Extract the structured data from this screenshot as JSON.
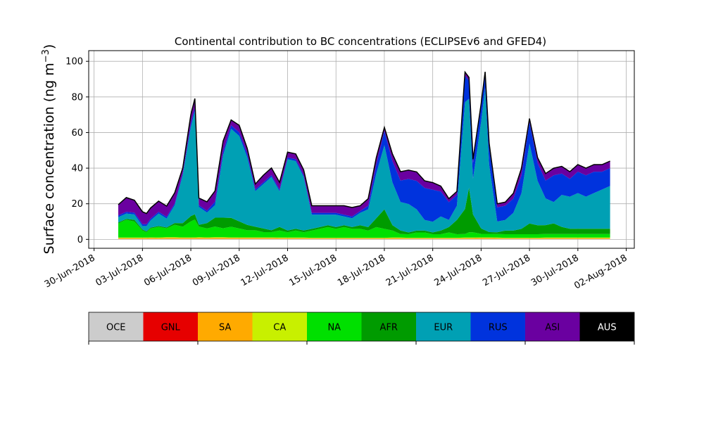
{
  "chart_data": {
    "type": "area",
    "title": "Continental contribution to BC concentrations (ECLIPSEv6 and GFED4)",
    "ylabel": "Surface concentration (ng m",
    "ylabel_exp": "−3",
    "ylabel_close": ")",
    "xlabel": "",
    "ylim": [
      -5,
      106
    ],
    "yticks": [
      0,
      20,
      40,
      60,
      80,
      100
    ],
    "xlim": [
      "2018-06-29T16:00",
      "2018-08-02T12:00"
    ],
    "xticks": [
      "2018-06-30",
      "2018-07-03",
      "2018-07-06",
      "2018-07-09",
      "2018-07-12",
      "2018-07-15",
      "2018-07-18",
      "2018-07-21",
      "2018-07-24",
      "2018-07-27",
      "2018-07-30",
      "2018-08-02"
    ],
    "xtick_labels": [
      "30-Jun-2018",
      "03-Jul-2018",
      "06-Jul-2018",
      "09-Jul-2018",
      "12-Jul-2018",
      "15-Jul-2018",
      "18-Jul-2018",
      "21-Jul-2018",
      "24-Jul-2018",
      "27-Jul-2018",
      "30-Jul-2018",
      "02-Aug-2018"
    ],
    "grid": true,
    "legend_position": "bottom colorbar",
    "x": [
      "2018-07-01T12:00",
      "2018-07-02T00:00",
      "2018-07-02T12:00",
      "2018-07-03T00:00",
      "2018-07-03T06:00",
      "2018-07-03T12:00",
      "2018-07-04T00:00",
      "2018-07-04T12:00",
      "2018-07-05T00:00",
      "2018-07-05T12:00",
      "2018-07-06T00:00",
      "2018-07-06T06:00",
      "2018-07-06T12:00",
      "2018-07-07T00:00",
      "2018-07-07T12:00",
      "2018-07-08T00:00",
      "2018-07-08T12:00",
      "2018-07-09T00:00",
      "2018-07-09T12:00",
      "2018-07-10T00:00",
      "2018-07-10T12:00",
      "2018-07-11T00:00",
      "2018-07-11T12:00",
      "2018-07-12T00:00",
      "2018-07-12T12:00",
      "2018-07-13T00:00",
      "2018-07-13T12:00",
      "2018-07-14T00:00",
      "2018-07-14T12:00",
      "2018-07-15T00:00",
      "2018-07-15T12:00",
      "2018-07-16T00:00",
      "2018-07-16T12:00",
      "2018-07-17T00:00",
      "2018-07-17T12:00",
      "2018-07-18T00:00",
      "2018-07-18T12:00",
      "2018-07-19T00:00",
      "2018-07-19T12:00",
      "2018-07-20T00:00",
      "2018-07-20T12:00",
      "2018-07-21T00:00",
      "2018-07-21T12:00",
      "2018-07-22T00:00",
      "2018-07-22T12:00",
      "2018-07-23T00:00",
      "2018-07-23T06:00",
      "2018-07-23T12:00",
      "2018-07-24T00:00",
      "2018-07-24T06:00",
      "2018-07-24T12:00",
      "2018-07-25T00:00",
      "2018-07-25T12:00",
      "2018-07-26T00:00",
      "2018-07-26T12:00",
      "2018-07-27T00:00",
      "2018-07-27T12:00",
      "2018-07-28T00:00",
      "2018-07-28T12:00",
      "2018-07-29T00:00",
      "2018-07-29T12:00",
      "2018-07-30T00:00",
      "2018-07-30T12:00",
      "2018-07-31T00:00",
      "2018-07-31T12:00",
      "2018-08-01T00:00"
    ],
    "series": [
      {
        "name": "OCE",
        "color": "#cccccc",
        "values": [
          0.2,
          0.2,
          0.2,
          0.2,
          0.2,
          0.2,
          0.2,
          0.2,
          0.2,
          0.2,
          0.2,
          0.2,
          0.2,
          0.2,
          0.2,
          0.2,
          0.2,
          0.2,
          0.2,
          0.2,
          0.2,
          0.2,
          0.2,
          0.2,
          0.2,
          0.2,
          0.2,
          0.2,
          0.2,
          0.2,
          0.2,
          0.2,
          0.2,
          0.2,
          0.2,
          0.2,
          0.2,
          0.2,
          0.2,
          0.2,
          0.2,
          0.2,
          0.2,
          0.2,
          0.2,
          0.2,
          0.2,
          0.2,
          0.2,
          0.2,
          0.2,
          0.2,
          0.2,
          0.2,
          0.2,
          0.2,
          0.2,
          0.2,
          0.2,
          0.2,
          0.2,
          0.2,
          0.2,
          0.2,
          0.2,
          0.2
        ]
      },
      {
        "name": "GNL",
        "color": "#e60000",
        "values": [
          0.1,
          0.1,
          0.1,
          0.1,
          0.1,
          0.1,
          0.1,
          0.1,
          0.1,
          0.1,
          0.1,
          0.1,
          0.1,
          0.1,
          0.1,
          0.1,
          0.1,
          0.1,
          0.1,
          0.1,
          0.1,
          0.1,
          0.1,
          0.1,
          0.1,
          0.1,
          0.1,
          0.1,
          0.1,
          0.1,
          0.1,
          0.1,
          0.1,
          0.1,
          0.1,
          0.1,
          0.1,
          0.1,
          0.1,
          0.1,
          0.1,
          0.1,
          0.1,
          0.1,
          0.1,
          0.1,
          0.1,
          0.1,
          0.1,
          0.1,
          0.1,
          0.1,
          0.1,
          0.1,
          0.1,
          0.1,
          0.1,
          0.1,
          0.1,
          0.1,
          0.1,
          0.1,
          0.1,
          0.1,
          0.1,
          0.1
        ]
      },
      {
        "name": "SA",
        "color": "#ffaa00",
        "values": [
          0.4,
          0.4,
          0.4,
          0.4,
          0.4,
          0.5,
          0.4,
          0.6,
          0.6,
          0.5,
          0.5,
          0.5,
          0.6,
          0.5,
          0.6,
          0.6,
          0.5,
          0.5,
          0.5,
          0.5,
          0.5,
          0.5,
          0.4,
          0.4,
          0.4,
          0.4,
          0.3,
          0.3,
          0.3,
          0.3,
          0.3,
          0.3,
          0.3,
          0.3,
          0.3,
          0.3,
          0.4,
          0.4,
          0.3,
          0.3,
          0.3,
          0.3,
          0.3,
          0.3,
          0.3,
          0.4,
          0.4,
          0.4,
          0.5,
          0.5,
          0.5,
          0.4,
          0.3,
          0.3,
          0.3,
          0.3,
          0.3,
          0.4,
          0.4,
          0.4,
          0.4,
          0.4,
          0.4,
          0.4,
          0.4,
          0.4
        ]
      },
      {
        "name": "CA",
        "color": "#c8f000",
        "values": [
          0.3,
          0.3,
          0.3,
          0.3,
          0.3,
          0.3,
          0.3,
          0.3,
          0.3,
          0.3,
          0.3,
          0.3,
          0.3,
          0.3,
          0.3,
          0.3,
          0.3,
          0.3,
          0.3,
          0.3,
          0.3,
          0.3,
          0.3,
          0.3,
          0.3,
          0.3,
          0.3,
          0.3,
          0.3,
          0.3,
          0.3,
          0.3,
          0.3,
          0.3,
          0.3,
          0.3,
          0.3,
          0.3,
          0.3,
          0.3,
          0.3,
          0.3,
          0.3,
          0.3,
          0.3,
          0.3,
          0.3,
          0.3,
          0.3,
          0.3,
          0.3,
          0.3,
          0.3,
          0.3,
          0.3,
          0.3,
          0.3,
          0.3,
          0.3,
          0.3,
          0.3,
          0.3,
          0.3,
          0.3,
          0.3,
          0.3
        ]
      },
      {
        "name": "NA",
        "color": "#00e000",
        "values": [
          8,
          10,
          9,
          4,
          3,
          5,
          6,
          5,
          7,
          6,
          9,
          10,
          6,
          5,
          6,
          5,
          6,
          5,
          4,
          4,
          3,
          3,
          4,
          3,
          4,
          3,
          4,
          5,
          6,
          5,
          6,
          5,
          5,
          4,
          6,
          5,
          4,
          2,
          2,
          3,
          3,
          2,
          2,
          3,
          2,
          2,
          3,
          3,
          2,
          2,
          2,
          2,
          2,
          2,
          2,
          2,
          2,
          2,
          2,
          2,
          2,
          2,
          2,
          2,
          2,
          2
        ]
      },
      {
        "name": "AFR",
        "color": "#009b00",
        "values": [
          0.5,
          0.5,
          1,
          0.5,
          0.5,
          0.5,
          0.5,
          0.5,
          1,
          2,
          3,
          3,
          1,
          3,
          5,
          6,
          5,
          4,
          3,
          2,
          2,
          1,
          2,
          1,
          1,
          1,
          1,
          1,
          1,
          1,
          1,
          1,
          2,
          2,
          5,
          11,
          3,
          2,
          1,
          1,
          1,
          1,
          2,
          3,
          8,
          14,
          25,
          10,
          3,
          2,
          1,
          1,
          2,
          2,
          3,
          6,
          5,
          5,
          6,
          4,
          3,
          3,
          3,
          3,
          3,
          3
        ]
      },
      {
        "name": "EUR",
        "color": "#00a0b4",
        "values": [
          3,
          3,
          3,
          2,
          3,
          4,
          7,
          5,
          10,
          27,
          50,
          58,
          10,
          6,
          7,
          35,
          50,
          48,
          38,
          20,
          25,
          30,
          20,
          40,
          38,
          30,
          8,
          7,
          6,
          7,
          5,
          5,
          7,
          10,
          25,
          36,
          24,
          16,
          16,
          12,
          6,
          6,
          8,
          4,
          8,
          60,
          50,
          20,
          60,
          80,
          38,
          6,
          6,
          10,
          20,
          45,
          25,
          15,
          12,
          18,
          18,
          20,
          18,
          20,
          22,
          24
        ]
      },
      {
        "name": "RUS",
        "color": "#0033dd",
        "values": [
          1,
          1,
          1,
          1,
          1,
          1,
          1,
          1,
          1,
          1,
          2,
          2,
          1,
          1,
          2,
          2,
          2,
          2,
          2,
          1,
          1,
          1,
          1,
          1,
          1,
          1,
          1,
          1,
          1,
          1,
          1,
          1,
          1,
          2,
          5,
          8,
          12,
          12,
          14,
          16,
          18,
          18,
          14,
          10,
          6,
          15,
          10,
          9,
          9,
          8,
          10,
          8,
          8,
          8,
          10,
          12,
          10,
          10,
          15,
          12,
          10,
          12,
          12,
          12,
          10,
          10
        ]
      },
      {
        "name": "ASI",
        "color": "#6a00a0",
        "values": [
          6,
          8,
          7,
          7,
          6,
          6,
          6,
          6,
          6,
          3,
          5,
          5,
          4,
          5,
          6,
          6,
          3,
          4,
          3,
          3,
          4,
          4,
          4,
          3,
          3,
          3,
          4,
          4,
          4,
          4,
          5,
          5,
          3,
          4,
          4,
          2,
          4,
          5,
          5,
          5,
          4,
          4,
          3,
          2,
          2,
          2,
          2,
          2,
          1,
          1,
          2,
          2,
          2,
          3,
          4,
          2,
          3,
          4,
          4,
          4,
          4,
          4,
          4,
          4,
          4,
          4
        ]
      },
      {
        "name": "AUS",
        "color": "#000000",
        "values": [
          0,
          0,
          0,
          0,
          0,
          0,
          0,
          0,
          0,
          0,
          0,
          0,
          0,
          0,
          0,
          0,
          0,
          0,
          0,
          0,
          0,
          0,
          0,
          0,
          0,
          0,
          0,
          0,
          0,
          0,
          0,
          0,
          0,
          0,
          0,
          0,
          0,
          0,
          0,
          0,
          0,
          0,
          0,
          0,
          0,
          0,
          0,
          0,
          0,
          0,
          0,
          0,
          0,
          0,
          0,
          0,
          0,
          0,
          0,
          0,
          0,
          0,
          0,
          0,
          0,
          0
        ]
      }
    ]
  }
}
